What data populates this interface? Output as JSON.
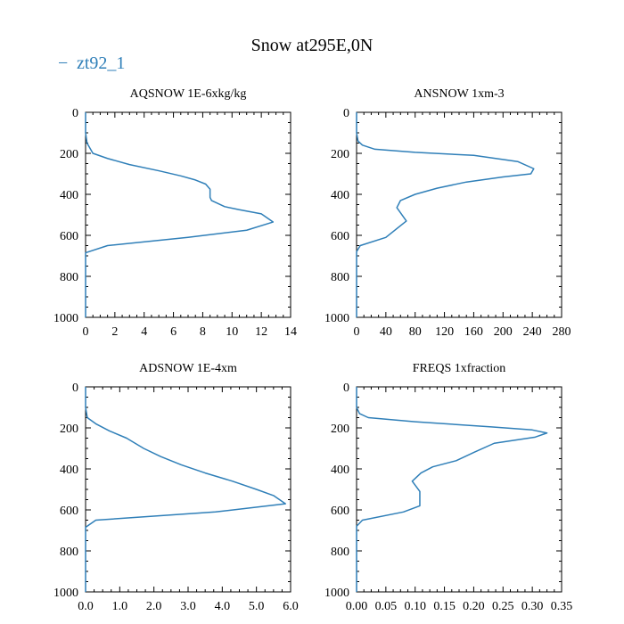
{
  "figure_title": "Snow at295E,0N",
  "legend": {
    "label": "zt92_1",
    "symbol": "−"
  },
  "colors": {
    "series": "#2f7fb8"
  },
  "chart_data": [
    {
      "type": "line",
      "title": "AQSNOW  1E-6xkg/kg",
      "xlim": [
        0,
        14
      ],
      "ylim": [
        1000,
        0
      ],
      "xticks": [
        0,
        2,
        4,
        6,
        8,
        10,
        12,
        14
      ],
      "xtick_labels": [
        "0",
        "2",
        "4",
        "6",
        "8",
        "10",
        "12",
        "14"
      ],
      "yticks": [
        0,
        200,
        400,
        600,
        800,
        1000
      ],
      "ytick_labels": [
        "0",
        "200",
        "400",
        "600",
        "800",
        "1000"
      ],
      "series": [
        {
          "name": "zt92_1",
          "x": [
            0,
            0,
            0.1,
            0.5,
            1.5,
            3,
            5,
            6.5,
            7.5,
            8.2,
            8.5,
            8.5,
            8.6,
            9.5,
            10.5,
            12,
            12.8,
            11,
            7,
            1.5,
            0,
            0,
            0
          ],
          "y": [
            0,
            100,
            150,
            200,
            225,
            255,
            285,
            310,
            330,
            350,
            375,
            415,
            430,
            460,
            475,
            495,
            535,
            575,
            610,
            650,
            685,
            700,
            1000
          ]
        }
      ]
    },
    {
      "type": "line",
      "title": "ANSNOW  1xm-3",
      "xlim": [
        0,
        280
      ],
      "ylim": [
        1000,
        0
      ],
      "xticks": [
        0,
        40,
        80,
        120,
        160,
        200,
        240,
        280
      ],
      "xtick_labels": [
        "0",
        "40",
        "80",
        "120",
        "160",
        "200",
        "240",
        "280"
      ],
      "yticks": [
        0,
        200,
        400,
        600,
        800,
        1000
      ],
      "ytick_labels": [
        "0",
        "200",
        "400",
        "600",
        "800",
        "1000"
      ],
      "series": [
        {
          "name": "zt92_1",
          "x": [
            0,
            0,
            2,
            8,
            25,
            80,
            160,
            220,
            242,
            238,
            200,
            150,
            110,
            80,
            60,
            55,
            68,
            40,
            5,
            0,
            0
          ],
          "y": [
            0,
            100,
            140,
            160,
            180,
            195,
            210,
            240,
            275,
            300,
            315,
            340,
            370,
            400,
            430,
            465,
            530,
            610,
            650,
            680,
            1000
          ]
        }
      ]
    },
    {
      "type": "line",
      "title": "ADSNOW  1E-4xm",
      "xlim": [
        0,
        6
      ],
      "ylim": [
        1000,
        0
      ],
      "xticks": [
        0,
        1,
        2,
        3,
        4,
        5,
        6
      ],
      "xtick_labels": [
        "0.0",
        "1.0",
        "2.0",
        "3.0",
        "4.0",
        "5.0",
        "6.0"
      ],
      "yticks": [
        0,
        200,
        400,
        600,
        800,
        1000
      ],
      "ytick_labels": [
        "0",
        "200",
        "400",
        "600",
        "800",
        "1000"
      ],
      "series": [
        {
          "name": "zt92_1",
          "x": [
            0,
            0,
            0.05,
            0.3,
            0.7,
            1.2,
            1.7,
            2.2,
            2.8,
            3.5,
            4.3,
            5.0,
            5.5,
            5.85,
            3.8,
            0.3,
            0,
            0
          ],
          "y": [
            0,
            100,
            150,
            180,
            215,
            250,
            300,
            340,
            380,
            420,
            460,
            500,
            530,
            570,
            610,
            650,
            685,
            1000
          ]
        }
      ]
    },
    {
      "type": "line",
      "title": "FREQS  1xfraction",
      "xlim": [
        0,
        0.35
      ],
      "ylim": [
        1000,
        0
      ],
      "xticks": [
        0,
        0.05,
        0.1,
        0.15,
        0.2,
        0.25,
        0.3,
        0.35
      ],
      "xtick_labels": [
        "0.00",
        "0.05",
        "0.10",
        "0.15",
        "0.20",
        "0.25",
        "0.30",
        "0.35"
      ],
      "yticks": [
        0,
        200,
        400,
        600,
        800,
        1000
      ],
      "ytick_labels": [
        "0",
        "200",
        "400",
        "600",
        "800",
        "1000"
      ],
      "series": [
        {
          "name": "zt92_1",
          "x": [
            0,
            0,
            0.005,
            0.02,
            0.1,
            0.23,
            0.3,
            0.325,
            0.305,
            0.235,
            0.2,
            0.17,
            0.13,
            0.11,
            0.095,
            0.108,
            0.108,
            0.08,
            0.01,
            0,
            0
          ],
          "y": [
            0,
            100,
            130,
            150,
            170,
            195,
            210,
            225,
            245,
            275,
            320,
            360,
            390,
            420,
            460,
            510,
            580,
            610,
            650,
            680,
            1000
          ]
        }
      ]
    }
  ]
}
